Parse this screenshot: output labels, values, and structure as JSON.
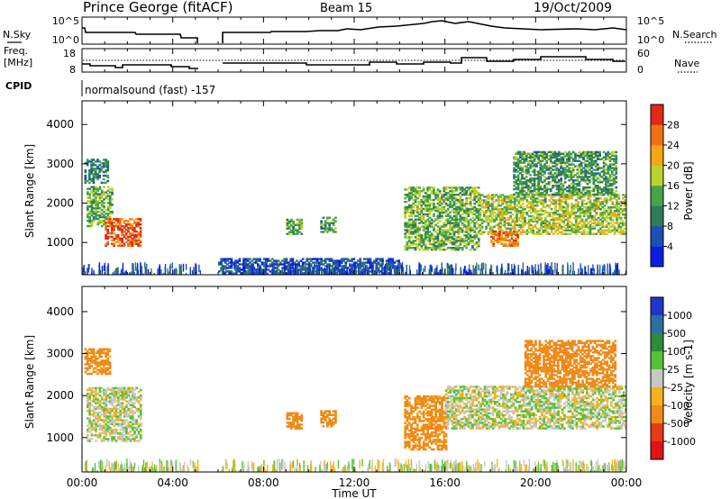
{
  "header": {
    "station": "Prince George (fitACF)",
    "beam": "Beam 15",
    "date": "19/Oct/2009"
  },
  "top_panels": {
    "nsky_label": "N.Sky",
    "nsky_ticks": [
      "10^5",
      "10^0"
    ],
    "nsearch_label": "N.Search",
    "nsearch_ticks": [
      "10^5",
      "10^0"
    ],
    "freq_label_1": "Freq.",
    "freq_label_2": "[MHz]",
    "freq_ticks": [
      "18",
      "8"
    ],
    "nave_label": "Nave",
    "nave_ticks": [
      "60",
      "0"
    ],
    "cpid_label": "CPID",
    "cpid_text": "normalsound (fast) -157"
  },
  "x_axis": {
    "label": "Time UT",
    "ticks": [
      "00:00",
      "04:00",
      "08:00",
      "12:00",
      "16:00",
      "20:00",
      "00:00"
    ]
  },
  "y_axis": {
    "label": "Slant Range [km]",
    "ticks": [
      "1000",
      "2000",
      "3000",
      "4000"
    ]
  },
  "power_scale": {
    "title": "Power [dB]",
    "ticks": [
      "4",
      "8",
      "12",
      "16",
      "20",
      "24",
      "28"
    ],
    "colors": [
      "#0a1ee6",
      "#1e50b4",
      "#2f7a5a",
      "#46a34a",
      "#bcd22a",
      "#f5a615",
      "#f07014",
      "#e02a14"
    ]
  },
  "velocity_scale": {
    "title": "Velocity [m s-1]",
    "ticks": [
      "1000",
      "500",
      "100",
      "25",
      "-25",
      "-100",
      "-500",
      "-1000"
    ],
    "colors": [
      "#2136c8",
      "#2e6fa0",
      "#2f8a3c",
      "#56c23a",
      "#c8c8c0",
      "#f5b21e",
      "#f08a18",
      "#e83a14",
      "#e01414"
    ]
  },
  "chart_data": [
    {
      "type": "heatmap",
      "title": "Power [dB]",
      "xlabel": "Time UT",
      "ylabel": "Slant Range [km]",
      "xlim": [
        0,
        24
      ],
      "ylim": [
        180,
        4600
      ],
      "colorbar_range": [
        0,
        30
      ],
      "ground_scatter_color": "none",
      "gap_hours": [
        5.2,
        6.1
      ],
      "regions": [
        {
          "t0": 0.2,
          "t1": 1.3,
          "r0": 1400,
          "r1": 2400,
          "level": 14
        },
        {
          "t0": 1.0,
          "t1": 2.6,
          "r0": 900,
          "r1": 1600,
          "level": 26
        },
        {
          "t0": 0.1,
          "t1": 1.1,
          "r0": 2500,
          "r1": 3100,
          "level": 10
        },
        {
          "t0": 6.0,
          "t1": 14.0,
          "r0": 200,
          "r1": 600,
          "level": 6
        },
        {
          "t0": 9.0,
          "t1": 9.7,
          "r0": 1200,
          "r1": 1600,
          "level": 12
        },
        {
          "t0": 10.5,
          "t1": 11.2,
          "r0": 1250,
          "r1": 1650,
          "level": 12
        },
        {
          "t0": 14.2,
          "t1": 17.5,
          "r0": 800,
          "r1": 2400,
          "level": 14
        },
        {
          "t0": 17.5,
          "t1": 24.0,
          "r0": 1200,
          "r1": 2200,
          "level": 16
        },
        {
          "t0": 18.0,
          "t1": 19.2,
          "r0": 900,
          "r1": 1300,
          "level": 24
        },
        {
          "t0": 19.0,
          "t1": 23.5,
          "r0": 2200,
          "r1": 3300,
          "level": 12
        }
      ]
    },
    {
      "type": "heatmap",
      "title": "Velocity [m s-1]",
      "xlabel": "Time UT",
      "ylabel": "Slant Range [km]",
      "xlim": [
        0,
        24
      ],
      "ylim": [
        180,
        4600
      ],
      "colorbar_range": [
        -1000,
        1000
      ],
      "gap_hours": [
        5.2,
        6.1
      ],
      "regions": [
        {
          "t0": 0.2,
          "t1": 2.6,
          "r0": 900,
          "r1": 2200,
          "value": 0
        },
        {
          "t0": 0.1,
          "t1": 1.2,
          "r0": 2500,
          "r1": 3100,
          "value": -150
        },
        {
          "t0": 9.0,
          "t1": 9.7,
          "r0": 1200,
          "r1": 1600,
          "value": -300
        },
        {
          "t0": 10.5,
          "t1": 11.2,
          "r0": 1250,
          "r1": 1650,
          "value": -300
        },
        {
          "t0": 14.2,
          "t1": 16.0,
          "r0": 700,
          "r1": 2000,
          "value": -150
        },
        {
          "t0": 16.0,
          "t1": 24.0,
          "r0": 1200,
          "r1": 2200,
          "value": 0
        },
        {
          "t0": 19.5,
          "t1": 23.5,
          "r0": 2200,
          "r1": 3300,
          "value": -200
        }
      ]
    }
  ]
}
